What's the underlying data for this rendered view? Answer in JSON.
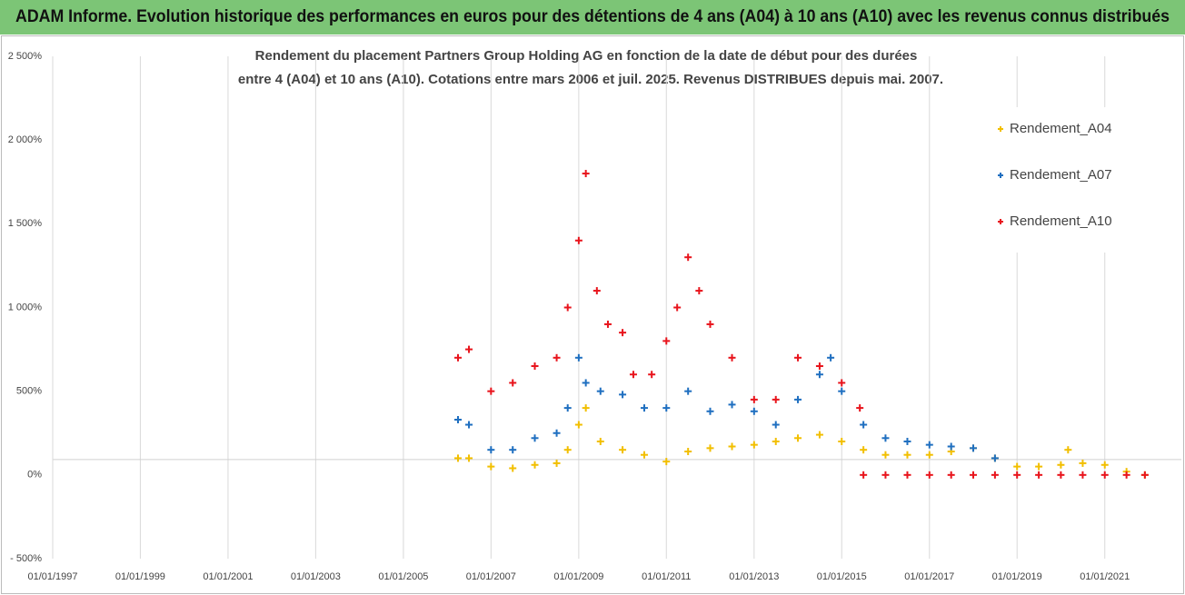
{
  "header": {
    "title": "ADAM Informe. Evolution historique des performances en euros pour des détentions de 4 ans (A04) à 10 ans (A10) avec les revenus connus distribués"
  },
  "chart_data": {
    "type": "scatter",
    "title": [
      "Rendement du placement Partners Group Holding AG en fonction de la date de début pour des durées",
      "entre 4 (A04) et 10 ans (A10). Cotations entre mars 2006 et juil. 2025.  Revenus DISTRIBUES depuis mai. 2007."
    ],
    "xlim": [
      "1997-01-01",
      "2022-10-01"
    ],
    "xticks": [
      {
        "value": "1997-01-01",
        "label": "01/01/1997"
      },
      {
        "value": "1999-01-01",
        "label": "01/01/1999"
      },
      {
        "value": "2001-01-01",
        "label": "01/01/2001"
      },
      {
        "value": "2003-01-01",
        "label": "01/01/2003"
      },
      {
        "value": "2005-01-01",
        "label": "01/01/2005"
      },
      {
        "value": "2007-01-01",
        "label": "01/01/2007"
      },
      {
        "value": "2009-01-01",
        "label": "01/01/2009"
      },
      {
        "value": "2011-01-01",
        "label": "01/01/2011"
      },
      {
        "value": "2013-01-01",
        "label": "01/01/2013"
      },
      {
        "value": "2015-01-01",
        "label": "01/01/2015"
      },
      {
        "value": "2017-01-01",
        "label": "01/01/2017"
      },
      {
        "value": "2019-01-01",
        "label": "01/01/2019"
      },
      {
        "value": "2021-01-01",
        "label": "01/01/2021"
      }
    ],
    "ylim": [
      -500,
      2500
    ],
    "yticks": [
      {
        "value": -500,
        "label": "- 500%"
      },
      {
        "value": 0,
        "label": "0%"
      },
      {
        "value": 500,
        "label": "500%"
      },
      {
        "value": 1000,
        "label": "1 000%"
      },
      {
        "value": 1500,
        "label": "1 500%"
      },
      {
        "value": 2000,
        "label": "2 000%"
      },
      {
        "value": 2500,
        "label": "2 500%"
      }
    ],
    "grid": "x",
    "legend": "right",
    "series": [
      {
        "name": "Rendement_A04",
        "color": "#f2bf00",
        "x": [
          "2006-04-01",
          "2006-07-01",
          "2007-01-01",
          "2007-07-01",
          "2008-01-01",
          "2008-07-01",
          "2008-10-01",
          "2009-01-01",
          "2009-03-01",
          "2009-07-01",
          "2010-01-01",
          "2010-07-01",
          "2011-01-01",
          "2011-07-01",
          "2012-01-01",
          "2012-07-01",
          "2013-01-01",
          "2013-07-01",
          "2014-01-01",
          "2014-07-01",
          "2015-01-01",
          "2015-07-01",
          "2016-01-01",
          "2016-07-01",
          "2017-01-01",
          "2017-07-01",
          "2018-01-01",
          "2018-07-01",
          "2019-01-01",
          "2019-07-01",
          "2020-01-01",
          "2020-03-01",
          "2020-07-01",
          "2021-01-01",
          "2021-07-01",
          "2021-12-01"
        ],
        "values": [
          100,
          100,
          50,
          40,
          60,
          70,
          150,
          300,
          400,
          200,
          150,
          120,
          80,
          140,
          160,
          170,
          180,
          200,
          220,
          240,
          200,
          150,
          120,
          120,
          120,
          140,
          160,
          100,
          50,
          50,
          60,
          150,
          70,
          60,
          20,
          0
        ]
      },
      {
        "name": "Rendement_A07",
        "color": "#1f6fc0",
        "x": [
          "2006-04-01",
          "2006-07-01",
          "2007-01-01",
          "2007-07-01",
          "2008-01-01",
          "2008-07-01",
          "2008-10-01",
          "2009-01-01",
          "2009-03-01",
          "2009-07-01",
          "2010-01-01",
          "2010-07-01",
          "2011-01-01",
          "2011-07-01",
          "2012-01-01",
          "2012-07-01",
          "2013-01-01",
          "2013-07-01",
          "2014-01-01",
          "2014-07-01",
          "2014-10-01",
          "2015-01-01",
          "2015-07-01",
          "2016-01-01",
          "2016-07-01",
          "2017-01-01",
          "2017-07-01",
          "2018-01-01",
          "2018-07-01"
        ],
        "values": [
          330,
          300,
          150,
          150,
          220,
          250,
          400,
          700,
          550,
          500,
          480,
          400,
          400,
          500,
          380,
          420,
          380,
          300,
          450,
          600,
          700,
          500,
          300,
          220,
          200,
          180,
          170,
          160,
          100
        ]
      },
      {
        "name": "Rendement_A10",
        "color": "#e8141c",
        "x": [
          "2006-04-01",
          "2006-07-01",
          "2007-01-01",
          "2007-07-01",
          "2008-01-01",
          "2008-07-01",
          "2008-10-01",
          "2009-01-01",
          "2009-03-01",
          "2009-06-01",
          "2009-09-01",
          "2010-01-01",
          "2010-04-01",
          "2010-09-01",
          "2011-01-01",
          "2011-04-01",
          "2011-07-01",
          "2011-10-01",
          "2012-01-01",
          "2012-07-01",
          "2013-01-01",
          "2013-07-01",
          "2014-01-01",
          "2014-07-01",
          "2015-01-01",
          "2015-06-01",
          "2015-07-01",
          "2016-01-01",
          "2016-07-01",
          "2017-01-01",
          "2017-07-01",
          "2018-01-01",
          "2018-07-01",
          "2019-01-01",
          "2019-07-01",
          "2020-01-01",
          "2020-07-01",
          "2021-01-01",
          "2021-07-01",
          "2021-12-01"
        ],
        "values": [
          700,
          750,
          500,
          550,
          650,
          700,
          1000,
          1400,
          1800,
          1100,
          900,
          850,
          600,
          600,
          800,
          1000,
          1300,
          1100,
          900,
          700,
          450,
          450,
          700,
          650,
          550,
          400,
          0,
          0,
          0,
          0,
          0,
          0,
          0,
          0,
          0,
          0,
          0,
          0,
          0,
          0
        ]
      }
    ]
  }
}
